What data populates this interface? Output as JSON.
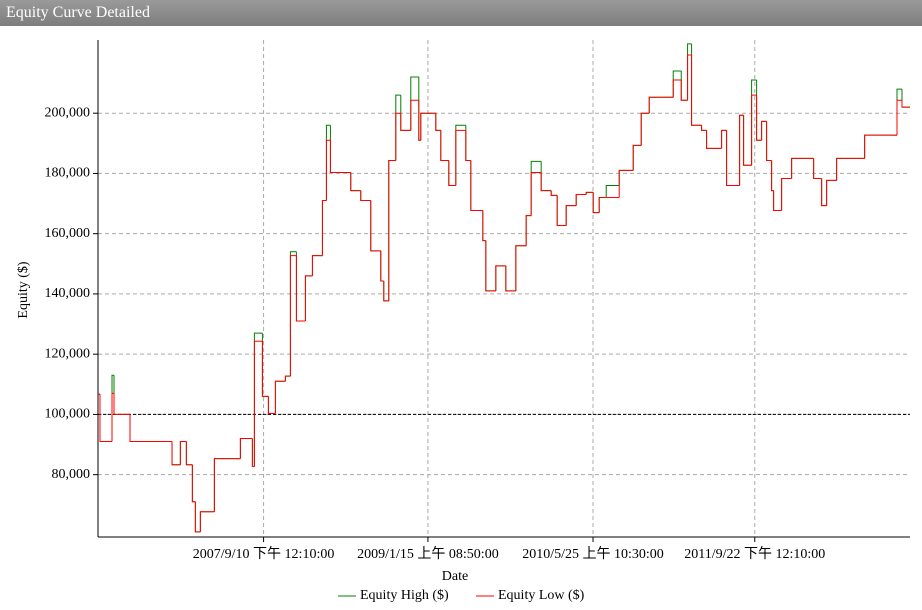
{
  "chart_data": {
    "type": "step",
    "title": "Equity Curve Detailed",
    "x_label": "Date",
    "y_label": "Equity ($)",
    "x": [
      "2006-05-02",
      "2006-05-08",
      "2006-06-07",
      "2006-06-13",
      "2006-06-19",
      "2006-08-06",
      "2006-12-10",
      "2007-01-04",
      "2007-01-22",
      "2007-02-09",
      "2007-02-18",
      "2007-03-05",
      "2007-04-10",
      "2007-04-16",
      "2007-06-18",
      "2007-07-03",
      "2007-08-08",
      "2007-08-14",
      "2007-09-07",
      "2007-09-25",
      "2007-10-16",
      "2007-11-15",
      "2007-11-30",
      "2007-12-18",
      "2008-01-14",
      "2008-02-04",
      "2008-02-28",
      "2008-03-05",
      "2008-03-17",
      "2008-03-29",
      "2008-05-13",
      "2008-05-29",
      "2008-06-28",
      "2008-07-28",
      "2008-08-27",
      "2008-09-05",
      "2008-09-20",
      "2008-10-11",
      "2008-10-26",
      "2008-11-25",
      "2008-12-19",
      "2008-12-25",
      "2009-02-08",
      "2009-02-23",
      "2009-03-19",
      "2009-04-09",
      "2009-05-09",
      "2009-05-24",
      "2009-06-29",
      "2009-07-08",
      "2009-08-07",
      "2009-09-06",
      "2009-10-06",
      "2009-11-06",
      "2009-11-21",
      "2009-12-21",
      "2010-01-20",
      "2010-02-07",
      "2010-03-06",
      "2010-04-05",
      "2010-05-05",
      "2010-05-26",
      "2010-06-13",
      "2010-07-04",
      "2010-08-12",
      "2010-09-23",
      "2010-10-17",
      "2010-11-10",
      "2010-12-16",
      "2011-01-21",
      "2011-02-14",
      "2011-03-05",
      "2011-03-17",
      "2011-04-16",
      "2011-05-01",
      "2011-06-15",
      "2011-06-30",
      "2011-08-08",
      "2011-08-20",
      "2011-09-13",
      "2011-09-28",
      "2011-10-13",
      "2011-10-28",
      "2011-11-12",
      "2011-11-18",
      "2011-12-12",
      "2012-01-11",
      "2012-02-25",
      "2012-03-17",
      "2012-04-10",
      "2012-04-25",
      "2012-05-25",
      "2012-08-08",
      "2012-08-17",
      "2012-11-07",
      "2012-11-22",
      "2012-12-07",
      "2012-12-28"
    ],
    "series": [
      {
        "name": "Equity High ($)",
        "color": "#008000",
        "values": [
          106700,
          91000,
          91000,
          113000,
          100000,
          91000,
          83300,
          91000,
          83300,
          71000,
          61000,
          67700,
          67700,
          85300,
          85300,
          92000,
          82700,
          127000,
          106000,
          100300,
          111000,
          112700,
          154000,
          131000,
          146000,
          152700,
          152700,
          171000,
          196000,
          180300,
          180300,
          174300,
          171000,
          154300,
          144300,
          137700,
          184300,
          206000,
          194300,
          212000,
          191000,
          200000,
          194300,
          184300,
          176000,
          196000,
          184300,
          167700,
          157700,
          141000,
          149300,
          141000,
          156000,
          166000,
          184000,
          174300,
          172700,
          162700,
          169300,
          173000,
          173700,
          167000,
          172000,
          176000,
          181000,
          189300,
          200000,
          205300,
          205300,
          214000,
          204300,
          223000,
          196000,
          194300,
          188300,
          194300,
          176000,
          199300,
          182700,
          211000,
          191000,
          197300,
          184300,
          174300,
          167700,
          178300,
          185000,
          185000,
          178300,
          169300,
          177700,
          185000,
          185000,
          192700,
          192700,
          208000,
          202000,
          202000
        ]
      },
      {
        "name": "Equity Low ($)",
        "color": "#ff0000",
        "values": [
          106700,
          91000,
          91000,
          107000,
          100000,
          91000,
          83300,
          91000,
          83300,
          71000,
          61000,
          67700,
          67700,
          85300,
          85300,
          92000,
          82700,
          124300,
          106000,
          100300,
          111000,
          112700,
          152700,
          131000,
          146000,
          152700,
          152700,
          171000,
          191000,
          180300,
          180300,
          174300,
          171000,
          154300,
          144300,
          137700,
          184300,
          200000,
          194300,
          204300,
          191000,
          200000,
          194300,
          184300,
          176000,
          194300,
          184300,
          167700,
          157700,
          141000,
          149300,
          141000,
          156000,
          166000,
          180300,
          174300,
          172700,
          162700,
          169300,
          173000,
          173700,
          167000,
          172000,
          172000,
          181000,
          189300,
          200000,
          205300,
          205300,
          211000,
          204300,
          219300,
          196000,
          194300,
          188300,
          194300,
          176000,
          199300,
          182700,
          206000,
          191000,
          197300,
          184300,
          174300,
          167700,
          178300,
          185000,
          185000,
          178300,
          169300,
          177700,
          185000,
          185000,
          192700,
          192700,
          204300,
          202000,
          202000
        ]
      }
    ],
    "xlim": [
      "2006-05-02",
      "2012-12-31"
    ],
    "xticks": [
      {
        "value": "2007-09-10T12:10:00",
        "label": "2007/9/10 下午 12:10:00"
      },
      {
        "value": "2009-01-15T08:50:00",
        "label": "2009/1/15 上午 08:50:00"
      },
      {
        "value": "2010-05-25T10:30:00",
        "label": "2010/5/25 上午 10:30:00"
      },
      {
        "value": "2011-09-22T12:10:00",
        "label": "2011/9/22 下午 12:10:00"
      }
    ],
    "ylim": [
      59300,
      224300
    ],
    "yticks": [
      {
        "value": 80000,
        "label": "80,000"
      },
      {
        "value": 100000,
        "label": "100,000"
      },
      {
        "value": 120000,
        "label": "120,000"
      },
      {
        "value": 140000,
        "label": "140,000"
      },
      {
        "value": 160000,
        "label": "160,000"
      },
      {
        "value": 180000,
        "label": "180,000"
      },
      {
        "value": 200000,
        "label": "200,000"
      }
    ],
    "reference_line": 100000,
    "grid": true
  }
}
